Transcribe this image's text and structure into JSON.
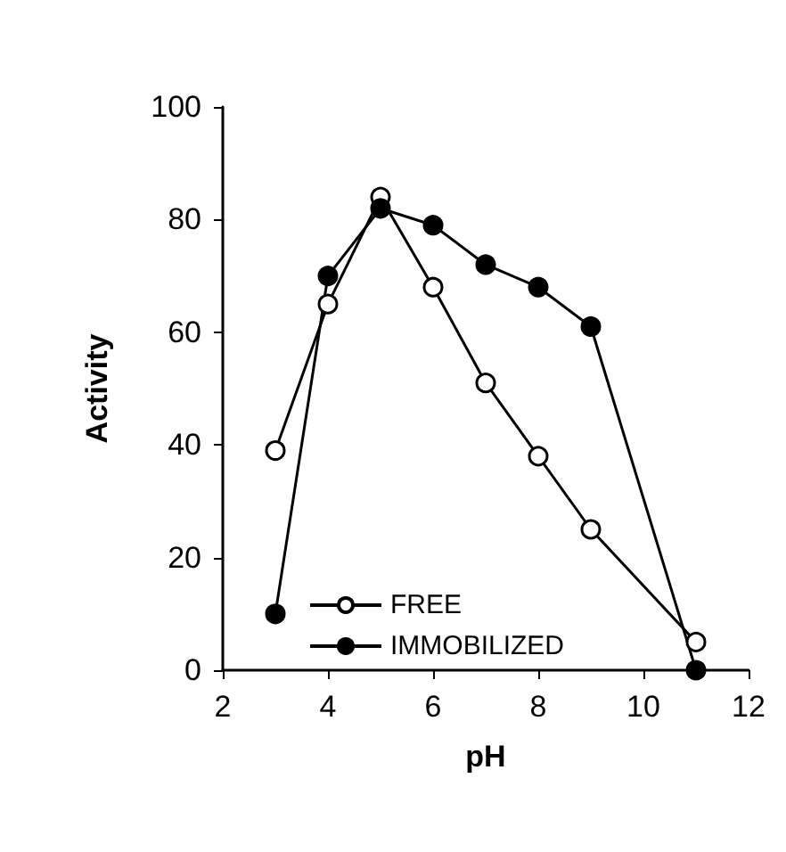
{
  "chart_data": {
    "type": "line",
    "xlabel": "pH",
    "ylabel": "Activity",
    "xlim": [
      2,
      12
    ],
    "xticks": [
      2,
      4,
      6,
      8,
      10,
      12
    ],
    "ylim": [
      0,
      100
    ],
    "yticks": [
      0,
      20,
      40,
      60,
      80,
      100
    ],
    "grid": false,
    "legend": "bottom left",
    "x": [
      3,
      4,
      5,
      6,
      7,
      8,
      9,
      11
    ],
    "series": [
      {
        "name": "FREE",
        "color": "#000000",
        "marker": "circle",
        "values": [
          39,
          65,
          84,
          68,
          51,
          38,
          25,
          5
        ]
      },
      {
        "name": "IMMOBILIZED",
        "color": "#000000",
        "marker": "circle",
        "values": [
          10,
          70,
          82,
          79,
          72,
          68,
          61,
          0
        ]
      }
    ]
  }
}
